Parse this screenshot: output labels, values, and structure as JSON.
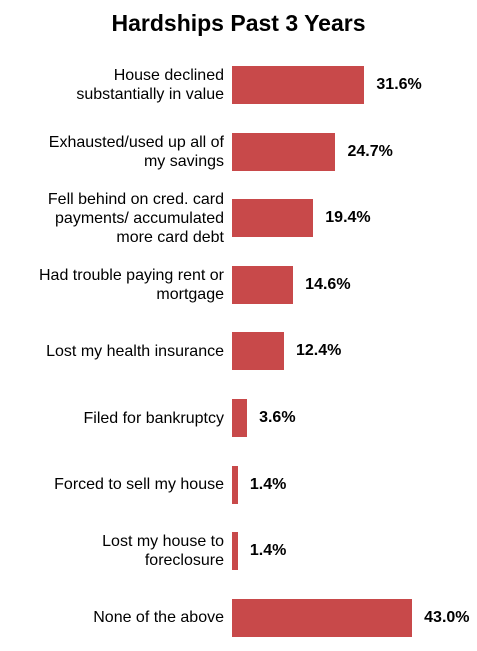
{
  "chart_data": {
    "type": "bar",
    "orientation": "horizontal",
    "title": "Hardships Past 3 Years",
    "categories": [
      "House declined\nsubstantially in value",
      "Exhausted/used up all of\nmy savings",
      "Fell behind on cred. card\npayments/ accumulated\nmore card debt",
      "Had trouble paying rent or\nmortgage",
      "Lost my health insurance",
      "Filed for bankruptcy",
      "Forced to sell my house",
      "Lost my house to\nforeclosure",
      "None of the above"
    ],
    "values": [
      31.6,
      24.7,
      19.4,
      14.6,
      12.4,
      3.6,
      1.4,
      1.4,
      43.0
    ],
    "value_labels": [
      "31.6%",
      "24.7%",
      "19.4%",
      "14.6%",
      "12.4%",
      "3.6%",
      "1.4%",
      "1.4%",
      "43.0%"
    ],
    "color": "#c8494a"
  }
}
